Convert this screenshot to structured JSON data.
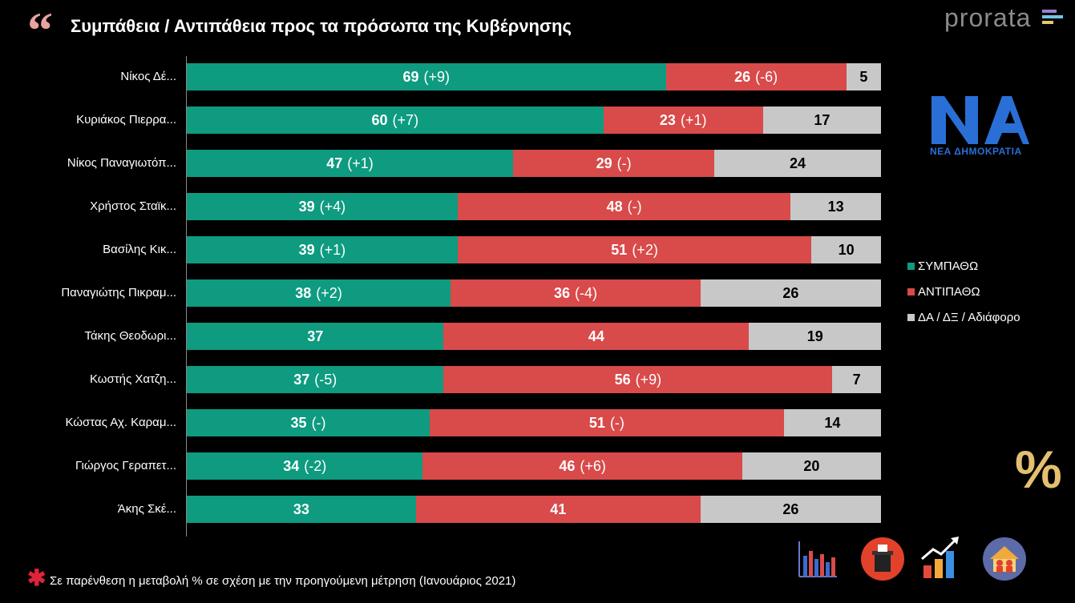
{
  "header": {
    "title": "Συμπάθεια / Αντιπάθεια προς τα πρόσωπα της Κυβέρνησης",
    "brand": "prorata"
  },
  "logo": {
    "party_name": "ΝΕΑ ΔΗΜΟΚΡΑΤΙΑ",
    "glyph": "%"
  },
  "footnote": {
    "text": "Σε παρένθεση η μεταβολή % σε σχέση με την προηγούμενη μέτρηση (Ιανουάριος 2021)"
  },
  "colors": {
    "sympatho": "#0e9b80",
    "antipatho": "#d94a4a",
    "da": "#c8c8c8"
  },
  "chart_data": {
    "type": "bar",
    "orientation": "horizontal",
    "stacked": true,
    "categories": [
      "Νίκος Δέ...",
      "Κυριάκος Πιερρα...",
      "Νίκος Παναγιωτόπ...",
      "Χρήστος Σταϊκ...",
      "Βασίλης Κικ...",
      "Παναγιώτης Πικραμ...",
      "Τάκης Θεοδωρι...",
      "Κωστής Χατζη...",
      "Κώστας Αχ. Καραμ...",
      "Γιώργος Γεραπετ...",
      "Άκης Σκέ..."
    ],
    "series": [
      {
        "name": "ΣΥΜΠΑΘΩ",
        "values": [
          69,
          60,
          47,
          39,
          39,
          38,
          37,
          37,
          35,
          34,
          33
        ],
        "changes": [
          "(+9)",
          "(+7)",
          "(+1)",
          "(+4)",
          "(+1)",
          "(+2)",
          "",
          "(-5)",
          "(-)",
          "(-2)",
          ""
        ]
      },
      {
        "name": "ΑΝΤΙΠΑΘΩ",
        "values": [
          26,
          23,
          29,
          48,
          51,
          36,
          44,
          56,
          51,
          46,
          41
        ],
        "changes": [
          "(-6)",
          "(+1)",
          "(-)",
          "(-)",
          "(+2)",
          "(-4)",
          "",
          "(+9)",
          "(-)",
          "(+6)",
          ""
        ]
      },
      {
        "name": "ΔΑ / ΔΞ / Αδιάφορο",
        "values": [
          5,
          17,
          24,
          13,
          10,
          26,
          19,
          7,
          14,
          20,
          26
        ],
        "changes": [
          "",
          "",
          "",
          "",
          "",
          "",
          "",
          "",
          "",
          "",
          ""
        ]
      }
    ],
    "xlim": [
      0,
      100
    ],
    "legend_position": "right"
  }
}
